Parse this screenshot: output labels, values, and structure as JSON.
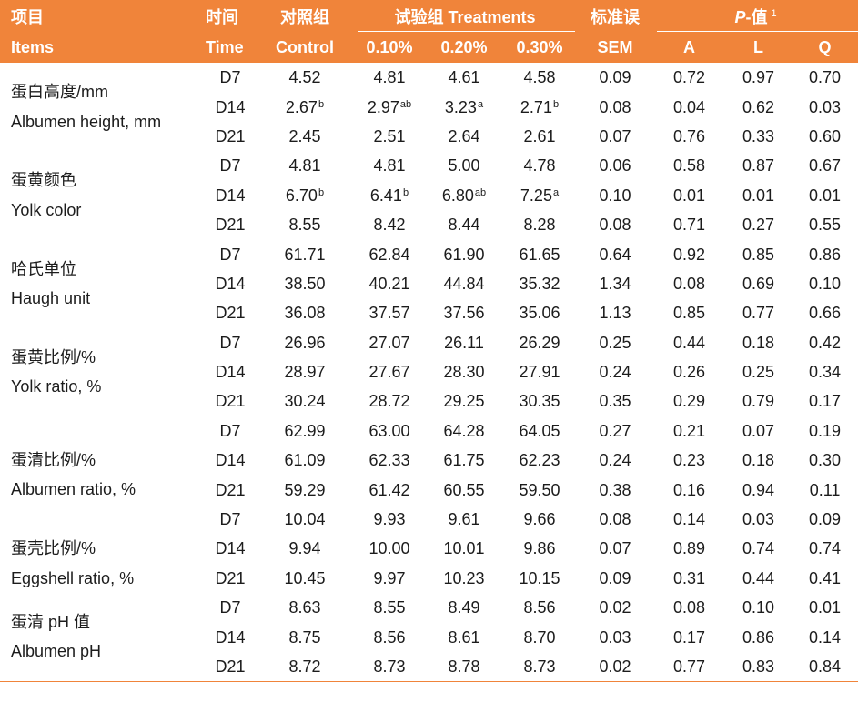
{
  "colors": {
    "header_bg": "#F0843A",
    "header_text": "#FFFFFF",
    "body_text": "#1C1C1C"
  },
  "header": {
    "items_cn": "项目",
    "items_en": "Items",
    "time_cn": "时间",
    "time_en": "Time",
    "control_cn": "对照组",
    "control_en": "Control",
    "treatments": "试验组 Treatments",
    "treatment_levels": [
      "0.10%",
      "0.20%",
      "0.30%"
    ],
    "sem_cn": "标准误",
    "sem_en": "SEM",
    "p_italic": "P",
    "p_rest": "-值",
    "p_note": "1",
    "p_cols": [
      "A",
      "L",
      "Q"
    ]
  },
  "groups": [
    {
      "name_cn": "蛋白高度/mm",
      "name_en": "Albumen height, mm",
      "rows": [
        {
          "time": "D7",
          "control": {
            "v": "4.52"
          },
          "treatments": [
            {
              "v": "4.81"
            },
            {
              "v": "4.61"
            },
            {
              "v": "4.58"
            }
          ],
          "sem": "0.09",
          "p": [
            "0.72",
            "0.97",
            "0.70"
          ]
        },
        {
          "time": "D14",
          "control": {
            "v": "2.67",
            "sup": "b"
          },
          "treatments": [
            {
              "v": "2.97",
              "sup": "ab"
            },
            {
              "v": "3.23",
              "sup": "a"
            },
            {
              "v": "2.71",
              "sup": "b"
            }
          ],
          "sem": "0.08",
          "p": [
            "0.04",
            "0.62",
            "0.03"
          ]
        },
        {
          "time": "D21",
          "control": {
            "v": "2.45"
          },
          "treatments": [
            {
              "v": "2.51"
            },
            {
              "v": "2.64"
            },
            {
              "v": "2.61"
            }
          ],
          "sem": "0.07",
          "p": [
            "0.76",
            "0.33",
            "0.60"
          ]
        }
      ]
    },
    {
      "name_cn": "蛋黄颜色",
      "name_en": "Yolk color",
      "rows": [
        {
          "time": "D7",
          "control": {
            "v": "4.81"
          },
          "treatments": [
            {
              "v": "4.81"
            },
            {
              "v": "5.00"
            },
            {
              "v": "4.78"
            }
          ],
          "sem": "0.06",
          "p": [
            "0.58",
            "0.87",
            "0.67"
          ]
        },
        {
          "time": "D14",
          "control": {
            "v": "6.70",
            "sup": "b"
          },
          "treatments": [
            {
              "v": "6.41",
              "sup": "b"
            },
            {
              "v": "6.80",
              "sup": "ab"
            },
            {
              "v": "7.25",
              "sup": "a"
            }
          ],
          "sem": "0.10",
          "p": [
            "0.01",
            "0.01",
            "0.01"
          ]
        },
        {
          "time": "D21",
          "control": {
            "v": "8.55"
          },
          "treatments": [
            {
              "v": "8.42"
            },
            {
              "v": "8.44"
            },
            {
              "v": "8.28"
            }
          ],
          "sem": "0.08",
          "p": [
            "0.71",
            "0.27",
            "0.55"
          ]
        }
      ]
    },
    {
      "name_cn": "哈氏单位",
      "name_en": "Haugh unit",
      "rows": [
        {
          "time": "D7",
          "control": {
            "v": "61.71"
          },
          "treatments": [
            {
              "v": "62.84"
            },
            {
              "v": "61.90"
            },
            {
              "v": "61.65"
            }
          ],
          "sem": "0.64",
          "p": [
            "0.92",
            "0.85",
            "0.86"
          ]
        },
        {
          "time": "D14",
          "control": {
            "v": "38.50"
          },
          "treatments": [
            {
              "v": "40.21"
            },
            {
              "v": "44.84"
            },
            {
              "v": "35.32"
            }
          ],
          "sem": "1.34",
          "p": [
            "0.08",
            "0.69",
            "0.10"
          ]
        },
        {
          "time": "D21",
          "control": {
            "v": "36.08"
          },
          "treatments": [
            {
              "v": "37.57"
            },
            {
              "v": "37.56"
            },
            {
              "v": "35.06"
            }
          ],
          "sem": "1.13",
          "p": [
            "0.85",
            "0.77",
            "0.66"
          ]
        }
      ]
    },
    {
      "name_cn": "蛋黄比例/%",
      "name_en": "Yolk ratio, %",
      "rows": [
        {
          "time": "D7",
          "control": {
            "v": "26.96"
          },
          "treatments": [
            {
              "v": "27.07"
            },
            {
              "v": "26.11"
            },
            {
              "v": "26.29"
            }
          ],
          "sem": "0.25",
          "p": [
            "0.44",
            "0.18",
            "0.42"
          ]
        },
        {
          "time": "D14",
          "control": {
            "v": "28.97"
          },
          "treatments": [
            {
              "v": "27.67"
            },
            {
              "v": "28.30"
            },
            {
              "v": "27.91"
            }
          ],
          "sem": "0.24",
          "p": [
            "0.26",
            "0.25",
            "0.34"
          ]
        },
        {
          "time": "D21",
          "control": {
            "v": "30.24"
          },
          "treatments": [
            {
              "v": "28.72"
            },
            {
              "v": "29.25"
            },
            {
              "v": "30.35"
            }
          ],
          "sem": "0.35",
          "p": [
            "0.29",
            "0.79",
            "0.17"
          ]
        }
      ]
    },
    {
      "name_cn": "蛋清比例/%",
      "name_en": "Albumen ratio, %",
      "rows": [
        {
          "time": "D7",
          "control": {
            "v": "62.99"
          },
          "treatments": [
            {
              "v": "63.00"
            },
            {
              "v": "64.28"
            },
            {
              "v": "64.05"
            }
          ],
          "sem": "0.27",
          "p": [
            "0.21",
            "0.07",
            "0.19"
          ]
        },
        {
          "time": "D14",
          "control": {
            "v": "61.09"
          },
          "treatments": [
            {
              "v": "62.33"
            },
            {
              "v": "61.75"
            },
            {
              "v": "62.23"
            }
          ],
          "sem": "0.24",
          "p": [
            "0.23",
            "0.18",
            "0.30"
          ]
        },
        {
          "time": "D21",
          "control": {
            "v": "59.29"
          },
          "treatments": [
            {
              "v": "61.42"
            },
            {
              "v": "60.55"
            },
            {
              "v": "59.50"
            }
          ],
          "sem": "0.38",
          "p": [
            "0.16",
            "0.94",
            "0.11"
          ]
        }
      ]
    },
    {
      "name_cn": "蛋壳比例/%",
      "name_en": "Eggshell ratio, %",
      "rows": [
        {
          "time": "D7",
          "control": {
            "v": "10.04"
          },
          "treatments": [
            {
              "v": "9.93"
            },
            {
              "v": "9.61"
            },
            {
              "v": "9.66"
            }
          ],
          "sem": "0.08",
          "p": [
            "0.14",
            "0.03",
            "0.09"
          ]
        },
        {
          "time": "D14",
          "control": {
            "v": "9.94"
          },
          "treatments": [
            {
              "v": "10.00"
            },
            {
              "v": "10.01"
            },
            {
              "v": "9.86"
            }
          ],
          "sem": "0.07",
          "p": [
            "0.89",
            "0.74",
            "0.74"
          ]
        },
        {
          "time": "D21",
          "control": {
            "v": "10.45"
          },
          "treatments": [
            {
              "v": "9.97"
            },
            {
              "v": "10.23"
            },
            {
              "v": "10.15"
            }
          ],
          "sem": "0.09",
          "p": [
            "0.31",
            "0.44",
            "0.41"
          ]
        }
      ]
    },
    {
      "name_cn": "蛋清 pH 值",
      "name_en": "Albumen pH",
      "rows": [
        {
          "time": "D7",
          "control": {
            "v": "8.63"
          },
          "treatments": [
            {
              "v": "8.55"
            },
            {
              "v": "8.49"
            },
            {
              "v": "8.56"
            }
          ],
          "sem": "0.02",
          "p": [
            "0.08",
            "0.10",
            "0.01"
          ]
        },
        {
          "time": "D14",
          "control": {
            "v": "8.75"
          },
          "treatments": [
            {
              "v": "8.56"
            },
            {
              "v": "8.61"
            },
            {
              "v": "8.70"
            }
          ],
          "sem": "0.03",
          "p": [
            "0.17",
            "0.86",
            "0.14"
          ]
        },
        {
          "time": "D21",
          "control": {
            "v": "8.72"
          },
          "treatments": [
            {
              "v": "8.73"
            },
            {
              "v": "8.78"
            },
            {
              "v": "8.73"
            }
          ],
          "sem": "0.02",
          "p": [
            "0.77",
            "0.83",
            "0.84"
          ]
        }
      ]
    }
  ]
}
